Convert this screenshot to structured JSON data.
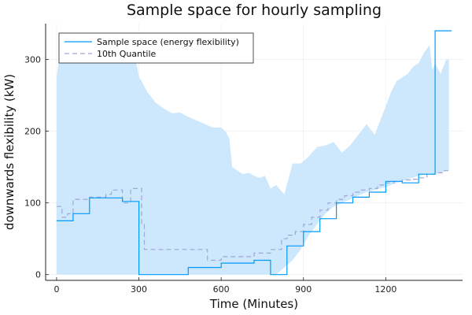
{
  "chart_data": {
    "type": "line",
    "title": "Sample space for hourly sampling",
    "xlabel": "Time (Minutes)",
    "ylabel": "downwards flexibility (kW)",
    "xlim": [
      -40,
      1480
    ],
    "ylim": [
      -8,
      350
    ],
    "xticks": [
      0,
      300,
      600,
      900,
      1200
    ],
    "yticks": [
      0,
      100,
      200,
      300
    ],
    "grid": true,
    "legend_position": "top-left",
    "colors": {
      "series": "#009AFA",
      "band": "#CDE8FC",
      "quantile": "#9FA6D6"
    },
    "band": {
      "name": "",
      "x": [
        0,
        5,
        10,
        15,
        20,
        30,
        40,
        60,
        90,
        120,
        150,
        180,
        210,
        240,
        260,
        280,
        290,
        300,
        310,
        330,
        345,
        360,
        390,
        420,
        450,
        480,
        510,
        540,
        570,
        600,
        615,
        630,
        640,
        660,
        680,
        700,
        720,
        740,
        760,
        780,
        800,
        830,
        860,
        890,
        920,
        950,
        980,
        1010,
        1040,
        1070,
        1100,
        1130,
        1160,
        1180,
        1200,
        1220,
        1240,
        1260,
        1280,
        1300,
        1320,
        1340,
        1360,
        1370,
        1380,
        1400,
        1420,
        1430
      ],
      "upper": [
        275,
        290,
        300,
        305,
        300,
        305,
        310,
        310,
        310,
        310,
        308,
        305,
        305,
        300,
        300,
        300,
        298,
        275,
        270,
        255,
        248,
        240,
        232,
        225,
        226,
        220,
        215,
        210,
        205,
        205,
        200,
        190,
        150,
        145,
        140,
        142,
        138,
        135,
        138,
        120,
        125,
        112,
        155,
        155,
        165,
        178,
        180,
        185,
        170,
        180,
        195,
        210,
        195,
        215,
        235,
        255,
        270,
        275,
        280,
        290,
        295,
        310,
        320,
        285,
        295,
        280,
        300,
        300
      ],
      "lower": [
        0,
        0,
        0,
        0,
        0,
        0,
        0,
        0,
        0,
        0,
        0,
        0,
        0,
        0,
        0,
        0,
        0,
        0,
        0,
        0,
        0,
        0,
        0,
        0,
        0,
        0,
        0,
        0,
        0,
        0,
        0,
        0,
        0,
        0,
        0,
        0,
        0,
        0,
        0,
        0,
        0,
        10,
        20,
        35,
        55,
        70,
        85,
        95,
        100,
        105,
        110,
        115,
        118,
        120,
        122,
        125,
        128,
        130,
        133,
        135,
        138,
        140,
        140,
        140,
        140,
        142,
        145,
        145
      ]
    },
    "series": [
      {
        "name": "Sample space (energy flexibility)",
        "style": "step",
        "x": [
          0,
          60,
          120,
          240,
          300,
          480,
          600,
          720,
          780,
          840,
          900,
          960,
          1020,
          1080,
          1140,
          1200,
          1260,
          1320,
          1380,
          1440
        ],
        "y": [
          75,
          85,
          107,
          102,
          0,
          10,
          16,
          20,
          0,
          40,
          60,
          78,
          100,
          108,
          115,
          130,
          128,
          140,
          340,
          340
        ]
      },
      {
        "name": "10th Quantile",
        "style": "step",
        "dashed": true,
        "x": [
          0,
          20,
          40,
          60,
          120,
          180,
          200,
          240,
          270,
          310,
          320,
          360,
          480,
          540,
          550,
          600,
          660,
          720,
          780,
          820,
          840,
          870,
          900,
          930,
          960,
          990,
          1020,
          1050,
          1080,
          1110,
          1140,
          1170,
          1200,
          1230,
          1260,
          1290,
          1320,
          1350,
          1380,
          1410,
          1430
        ],
        "y": [
          95,
          80,
          85,
          105,
          108,
          112,
          118,
          100,
          120,
          70,
          35,
          35,
          35,
          35,
          20,
          25,
          25,
          30,
          35,
          50,
          55,
          60,
          70,
          80,
          90,
          100,
          105,
          110,
          115,
          118,
          120,
          125,
          128,
          130,
          132,
          133,
          135,
          140,
          142,
          145,
          148
        ]
      }
    ]
  }
}
